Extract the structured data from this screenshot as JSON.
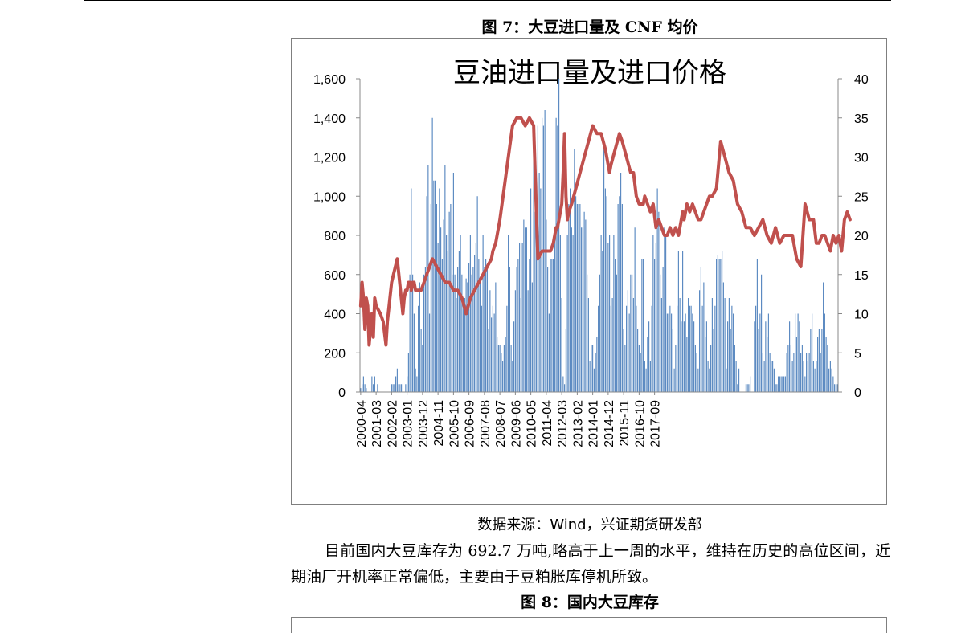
{
  "page": {
    "figure7_title": "图 7：大豆进口量及 CNF 均价",
    "source": "数据来源：Wind，兴证期货研发部",
    "paragraph": "目前国内大豆库存为 692.7 万吨,略高于上一周的水平，维持在历史的高位区间，近期油厂开机率正常偏低，主要由于豆粕胀库停机所致。",
    "figure8_title": "图 8：国内大豆库存"
  },
  "chart_data": {
    "type": "bar",
    "title": "豆油进口量及进口价格",
    "xlabel": "",
    "ylabel": "",
    "ylim": [
      0,
      1600
    ],
    "y2lim": [
      0,
      40
    ],
    "y_ticks": [
      "0",
      "200",
      "400",
      "600",
      "800",
      "1,000",
      "1,200",
      "1,400",
      "1,600"
    ],
    "y2_ticks": [
      "0",
      "5",
      "10",
      "15",
      "20",
      "25",
      "30",
      "35",
      "40"
    ],
    "x_tick_labels": [
      "2000-04",
      "2001-03",
      "2002-02",
      "2003-01",
      "2003-12",
      "2004-11",
      "2005-10",
      "2006-09",
      "2007-08",
      "2008-07",
      "2009-06",
      "2010-05",
      "2011-04",
      "2012-03",
      "2013-02",
      "2014-01",
      "2014-12",
      "2015-11",
      "2016-10",
      "2017-09"
    ],
    "grid": false,
    "legend": "none",
    "colors": {
      "bars": "#4f81bd",
      "line": "#c0504d"
    },
    "series": [
      {
        "type": "bar",
        "axis": "left",
        "values": [
          20,
          40,
          80,
          40,
          20,
          0,
          0,
          0,
          80,
          40,
          80,
          0,
          40,
          0,
          0,
          0,
          0,
          0,
          0,
          0,
          0,
          0,
          40,
          40,
          40,
          80,
          120,
          40,
          40,
          40,
          0,
          0,
          40,
          80,
          200,
          600,
          1040,
          600,
          400,
          120,
          80,
          440,
          560,
          320,
          240,
          600,
          640,
          1000,
          1160,
          400,
          960,
          1400,
          1080,
          1080,
          960,
          760,
          1040,
          840,
          680,
          880,
          1160,
          800,
          720,
          920,
          960,
          600,
          1120,
          600,
          480,
          640,
          720,
          800,
          600,
          480,
          480,
          580,
          560,
          660,
          800,
          600,
          640,
          700,
          760,
          1000,
          680,
          560,
          440,
          800,
          640,
          680,
          640,
          320,
          520,
          380,
          440,
          400,
          560,
          280,
          240,
          240,
          200,
          160,
          240,
          280,
          440,
          800,
          640,
          240,
          160,
          360,
          520,
          640,
          680,
          760,
          480,
          760,
          880,
          840,
          840,
          520,
          680,
          1040,
          560,
          1360,
          920,
          1040,
          1360,
          1120,
          1040,
          1400,
          1360,
          1440,
          880,
          640,
          400,
          680,
          680,
          680,
          840,
          1400,
          1360,
          1600,
          800,
          480,
          80,
          40,
          320,
          800,
          960,
          1040,
          840,
          800,
          1240,
          1000,
          960,
          960,
          960,
          840,
          840,
          920,
          880,
          600,
          480,
          160,
          240,
          240,
          120,
          200,
          280,
          440,
          600,
          800,
          720,
          1280,
          1040,
          1000,
          760,
          800,
          440,
          480,
          800,
          680,
          600,
          960,
          1000,
          1120,
          960,
          320,
          240,
          440,
          520,
          400,
          600,
          600,
          480,
          840,
          440,
          320,
          240,
          200,
          680,
          680,
          160,
          120,
          280,
          360,
          160,
          440,
          800,
          680,
          760,
          1040,
          920,
          600,
          480,
          640,
          840,
          800,
          400,
          400,
          440,
          400,
          320,
          120,
          240,
          440,
          720,
          480,
          360,
          720,
          360,
          400,
          280,
          480,
          440,
          440,
          400,
          360,
          240,
          200,
          120,
          520,
          640,
          440,
          560,
          280,
          360,
          160,
          120,
          240,
          480,
          320,
          440,
          680,
          700,
          680,
          680,
          720,
          560,
          480,
          120,
          360,
          480,
          320,
          440,
          400,
          240,
          160,
          40,
          120,
          0,
          0,
          0,
          0,
          40,
          40,
          40,
          80,
          0,
          0,
          360,
          440,
          680,
          320,
          400,
          600,
          200,
          160,
          360,
          280,
          400,
          200,
          160,
          160,
          120,
          40,
          40,
          80,
          80,
          80,
          80,
          80,
          80,
          200,
          240,
          360,
          240,
          160,
          200,
          400,
          280,
          400,
          360,
          200,
          240,
          160,
          80,
          200,
          160,
          200,
          320,
          400,
          160,
          120,
          160,
          280,
          320,
          200,
          320,
          560,
          400,
          280,
          240,
          120,
          160,
          120,
          80,
          40,
          40,
          40
        ]
      },
      {
        "type": "line",
        "axis": "right",
        "x": [
          0,
          1,
          2,
          3,
          4,
          5,
          6,
          7,
          8,
          9,
          10,
          11,
          14,
          16,
          18,
          19,
          22,
          26,
          30,
          31,
          32,
          33,
          34,
          35,
          36,
          37,
          38,
          39,
          40,
          41,
          42,
          43,
          45,
          47,
          49,
          51,
          54,
          57,
          60,
          63,
          66,
          69,
          72,
          75,
          78,
          81,
          84,
          87,
          90,
          93,
          94,
          96,
          99,
          102,
          105,
          108,
          111,
          114,
          117,
          120,
          123,
          126,
          129,
          132,
          135,
          137,
          138,
          139,
          140,
          141,
          143,
          144,
          145,
          146,
          147,
          148,
          150,
          153,
          156,
          159,
          162,
          165,
          168,
          171,
          174,
          175,
          176,
          177,
          178,
          181,
          184,
          186,
          189,
          192,
          194,
          196,
          198,
          200,
          201,
          202,
          204,
          206,
          208,
          210,
          212,
          214,
          216,
          218,
          220,
          222,
          224,
          226,
          228,
          229,
          230,
          232,
          234,
          236,
          238,
          240,
          242,
          244,
          246,
          248,
          250,
          253,
          256,
          259,
          262,
          265,
          268,
          271,
          274,
          277,
          280,
          283,
          286,
          289,
          292,
          295,
          298,
          301,
          304,
          307,
          310,
          313,
          316,
          319,
          322,
          324,
          326,
          328,
          330,
          332,
          334,
          336,
          338,
          340,
          342,
          344,
          346,
          348
        ],
        "values": [
          11,
          14,
          12,
          8,
          12,
          11,
          6,
          8,
          10,
          7,
          12,
          11,
          10,
          9,
          6,
          9,
          14,
          17,
          10,
          12,
          13,
          13,
          14,
          14,
          13,
          14,
          14,
          13,
          13,
          13,
          13,
          13,
          14,
          15,
          16,
          17,
          16,
          15,
          14,
          14,
          13,
          13,
          12,
          10,
          12,
          13,
          14,
          15,
          16,
          17,
          18,
          19,
          22,
          26,
          30,
          34,
          35,
          35,
          34,
          35,
          34,
          17,
          18,
          18,
          18,
          19,
          20,
          21,
          21,
          22,
          24,
          28,
          33,
          25,
          22,
          23,
          24,
          26,
          28,
          30,
          32,
          34,
          33,
          33,
          31,
          30,
          29,
          28,
          29,
          31,
          33,
          32,
          30,
          28,
          28,
          25,
          24,
          24,
          24,
          25,
          24,
          23,
          24,
          21,
          22,
          21,
          20,
          20,
          21,
          20,
          21,
          20,
          22,
          23,
          22,
          24,
          23,
          24,
          23,
          22,
          22,
          23,
          24,
          25,
          25,
          26,
          32,
          30,
          28,
          27,
          24,
          23,
          21,
          21,
          20,
          21,
          22,
          20,
          19,
          21,
          19,
          20,
          20,
          20,
          17,
          16,
          24,
          22,
          22,
          19,
          19,
          20,
          20,
          19,
          18,
          20,
          19,
          20,
          18,
          22,
          23,
          22
        ]
      }
    ]
  }
}
